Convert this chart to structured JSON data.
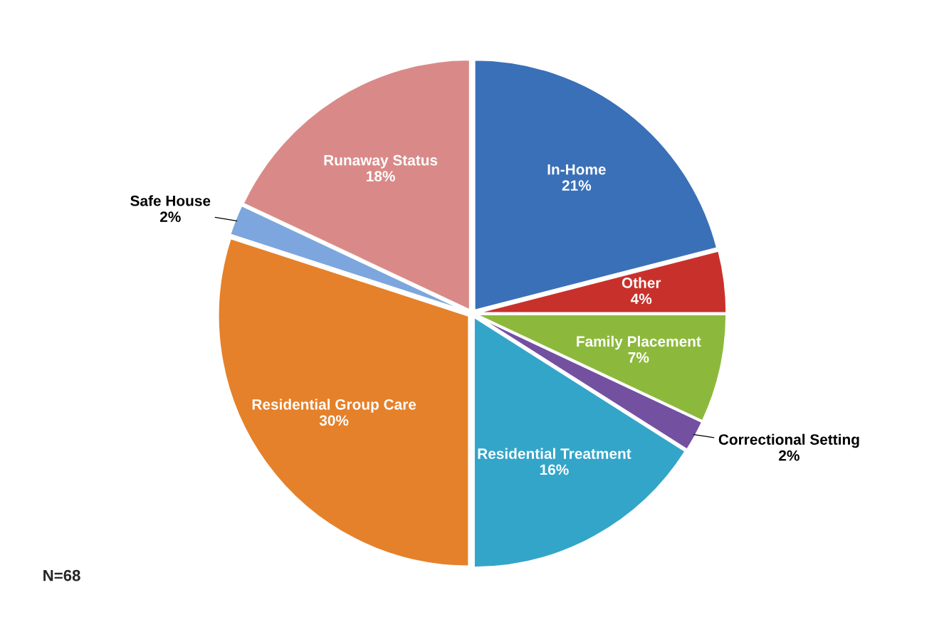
{
  "chart_data": {
    "type": "pie",
    "categories": [
      "In-Home",
      "Other",
      "Family Placement",
      "Correctional Setting",
      "Residential Treatment",
      "Residential Group Care",
      "Safe House",
      "Runaway Status"
    ],
    "values": [
      21,
      4,
      7,
      2,
      16,
      30,
      2,
      18
    ],
    "value_labels": [
      "21%",
      "4%",
      "7%",
      "2%",
      "16%",
      "30%",
      "2%",
      "18%"
    ],
    "colors": [
      "#3a70b8",
      "#c8312b",
      "#8cb93c",
      "#7450a0",
      "#33a5c9",
      "#e5812a",
      "#7ca6dd",
      "#d98a88"
    ],
    "annotations": [
      "N=68"
    ],
    "legend": false
  }
}
